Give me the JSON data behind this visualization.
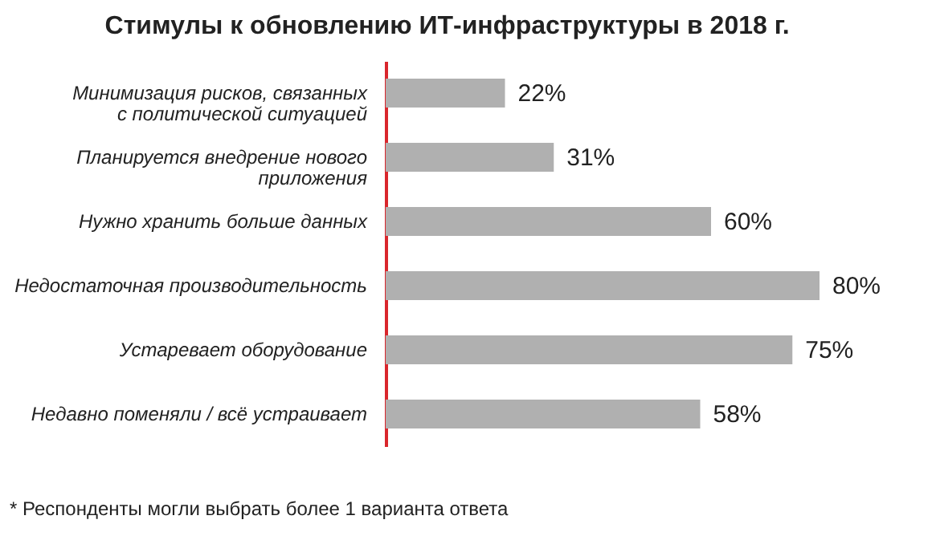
{
  "chart_data": {
    "type": "bar",
    "orientation": "horizontal",
    "title": "Стимулы к обновлению ИТ-инфраструктуры в 2018 г.",
    "categories": [
      "Минимизация рисков, связанных\nс политической ситуацией",
      "Планируется внедрение нового\nприложения",
      "Нужно хранить больше данных",
      "Недостаточная производительность",
      "Устаревает оборудование",
      "Недавно поменяли / всё устраивает"
    ],
    "values": [
      22,
      31,
      60,
      80,
      75,
      58
    ],
    "value_labels": [
      "22%",
      "31%",
      "60%",
      "80%",
      "75%",
      "58%"
    ],
    "color": "#b0b0b0",
    "annotations": [
      "* Респонденты могли выбрать более 1 варианта ответа"
    ]
  }
}
